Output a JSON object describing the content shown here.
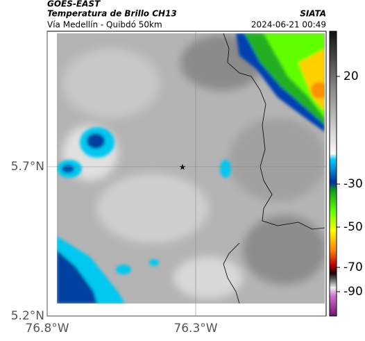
{
  "header": {
    "source": "GOES-EAST",
    "title": "Temperatura de Brillo CH13",
    "subtitle": "Vía Medellín - Quibdó 50km",
    "agency": "SIATA",
    "timestamp": "2024-06-21 00:49"
  },
  "map": {
    "lat_ticks": [
      {
        "value": 5.7,
        "label": "5.7°N"
      },
      {
        "value": 5.2,
        "label": "5.2°N"
      }
    ],
    "lon_ticks": [
      {
        "value": -76.8,
        "label": "76.8°W"
      },
      {
        "value": -76.3,
        "label": "76.3°W"
      }
    ],
    "colorbar_ticks": [
      20,
      -30,
      -50,
      -70,
      -90
    ]
  }
}
